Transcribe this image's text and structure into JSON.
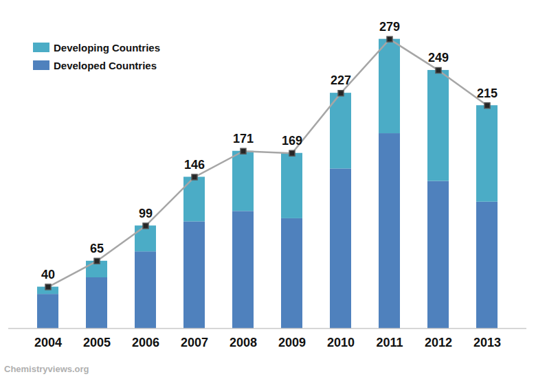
{
  "chart_data": {
    "type": "bar",
    "categories": [
      "2004",
      "2005",
      "2006",
      "2007",
      "2008",
      "2009",
      "2010",
      "2011",
      "2012",
      "2013"
    ],
    "series": [
      {
        "name": "Developing Countries",
        "color": "#4bacc6",
        "values": [
          7,
          16,
          25,
          43,
          58,
          63,
          73,
          91,
          107,
          93
        ]
      },
      {
        "name": "Developed Countries",
        "color": "#4f81bd",
        "values": [
          33,
          49,
          74,
          103,
          113,
          106,
          154,
          188,
          142,
          122
        ]
      }
    ],
    "totals": [
      40,
      65,
      99,
      146,
      171,
      169,
      227,
      279,
      249,
      215
    ],
    "stacked": true,
    "data_labels": true,
    "legend": "top-left",
    "tick_labels": "x",
    "grid": false,
    "ylim": [
      0,
      290
    ],
    "caption": "Chemistryviews.org"
  }
}
